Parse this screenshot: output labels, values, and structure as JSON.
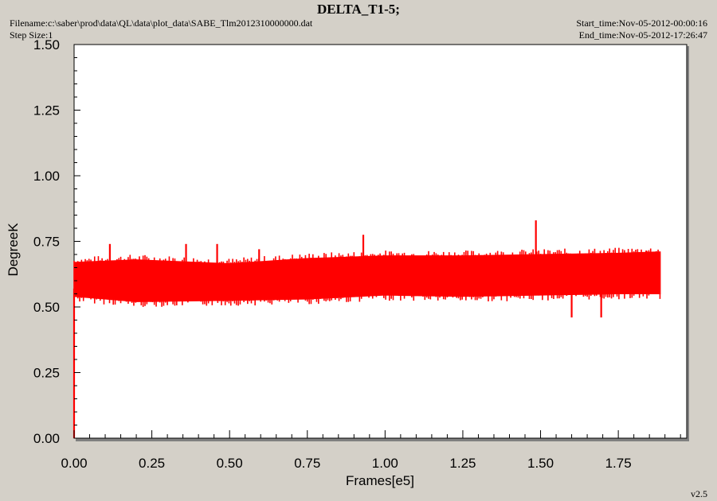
{
  "header": {
    "title": "DELTA_T1-5;",
    "filename": "Filename:c:\\saber\\prod\\data\\QL\\data\\plot_data\\SABE_Tlm2012310000000.dat",
    "step_size": "Step Size:1",
    "start_time": "Start_time:Nov-05-2012-00:00:16",
    "end_time": "End_time:Nov-05-2012-17:26:47"
  },
  "footer": {
    "version": "v2.5"
  },
  "chart_data": {
    "type": "line",
    "title": "DELTA_T1-5;",
    "xlabel": "Frames[e5]",
    "ylabel": "DegreeK",
    "xlim": [
      0,
      1.97
    ],
    "ylim": [
      0,
      1.5
    ],
    "x_ticks": [
      0.0,
      0.25,
      0.5,
      0.75,
      1.0,
      1.25,
      1.5,
      1.75
    ],
    "x_tick_labels": [
      "0.00",
      "0.25",
      "0.50",
      "0.75",
      "1.00",
      "1.25",
      "1.50",
      "1.75"
    ],
    "y_ticks": [
      0.0,
      0.25,
      0.5,
      0.75,
      1.0,
      1.25,
      1.5
    ],
    "y_tick_labels": [
      "0.00",
      "0.25",
      "0.50",
      "0.75",
      "1.00",
      "1.25",
      "1.50"
    ],
    "grid": false,
    "line_color": "#ff0000",
    "x_range_data": [
      0.0,
      1.885
    ],
    "band_low": [
      [
        0.0,
        0.54
      ],
      [
        0.2,
        0.52
      ],
      [
        0.5,
        0.525
      ],
      [
        0.75,
        0.53
      ],
      [
        1.0,
        0.545
      ],
      [
        1.25,
        0.54
      ],
      [
        1.5,
        0.545
      ],
      [
        1.75,
        0.55
      ],
      [
        1.885,
        0.55
      ]
    ],
    "band_high": [
      [
        0.0,
        0.67
      ],
      [
        0.2,
        0.68
      ],
      [
        0.5,
        0.665
      ],
      [
        0.75,
        0.685
      ],
      [
        1.0,
        0.695
      ],
      [
        1.25,
        0.695
      ],
      [
        1.5,
        0.7
      ],
      [
        1.75,
        0.705
      ],
      [
        1.885,
        0.71
      ]
    ],
    "spikes": [
      {
        "x": 0.0,
        "y": 0.0
      },
      {
        "x": 0.115,
        "y": 0.74
      },
      {
        "x": 0.36,
        "y": 0.74
      },
      {
        "x": 0.46,
        "y": 0.74
      },
      {
        "x": 0.595,
        "y": 0.72
      },
      {
        "x": 0.93,
        "y": 0.775
      },
      {
        "x": 1.485,
        "y": 0.83
      },
      {
        "x": 1.6,
        "y": 0.46
      },
      {
        "x": 1.695,
        "y": 0.46
      },
      {
        "x": 1.84,
        "y": 0.715
      }
    ]
  }
}
